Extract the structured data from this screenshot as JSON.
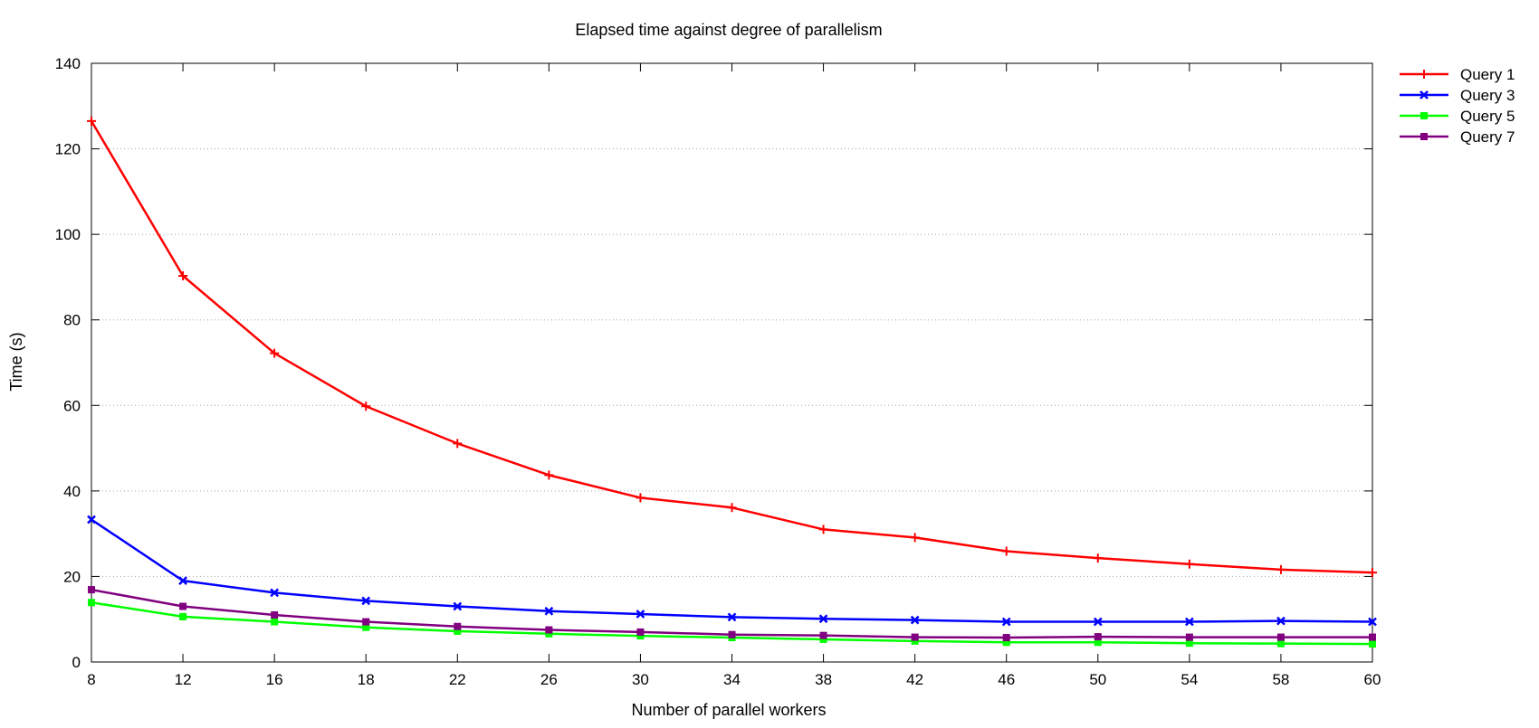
{
  "chart_data": {
    "type": "line",
    "title": "Elapsed time against degree of parallelism",
    "xlabel": "Number of parallel workers",
    "ylabel": "Time (s)",
    "categories": [
      "8",
      "12",
      "16",
      "18",
      "22",
      "26",
      "30",
      "34",
      "38",
      "42",
      "46",
      "50",
      "54",
      "58",
      "60"
    ],
    "ylim": [
      0,
      140
    ],
    "yticks": [
      0,
      20,
      40,
      60,
      80,
      100,
      120,
      140
    ],
    "grid": "horizontal dotted",
    "legend_position": "top-right, outside plot",
    "series": [
      {
        "name": "Query 1",
        "color": "#ff0000",
        "marker": "plus",
        "values": [
          126.5,
          90.3,
          72.2,
          59.8,
          51.1,
          43.7,
          38.4,
          36.1,
          31.0,
          29.1,
          25.9,
          24.3,
          22.9,
          21.6,
          20.9
        ]
      },
      {
        "name": "Query 3",
        "color": "#0000ff",
        "marker": "cross",
        "values": [
          33.3,
          19.0,
          16.2,
          14.3,
          13.0,
          11.9,
          11.2,
          10.5,
          10.1,
          9.8,
          9.4,
          9.4,
          9.4,
          9.6,
          9.4
        ]
      },
      {
        "name": "Query 5",
        "color": "#00ff00",
        "marker": "square",
        "values": [
          13.9,
          10.6,
          9.4,
          8.1,
          7.2,
          6.6,
          6.1,
          5.7,
          5.3,
          4.9,
          4.6,
          4.6,
          4.4,
          4.3,
          4.2
        ]
      },
      {
        "name": "Query 7",
        "color": "#800080",
        "marker": "square",
        "values": [
          16.9,
          13.0,
          11.0,
          9.4,
          8.3,
          7.5,
          7.0,
          6.4,
          6.2,
          5.8,
          5.7,
          5.9,
          5.8,
          5.8,
          5.8
        ]
      }
    ]
  }
}
